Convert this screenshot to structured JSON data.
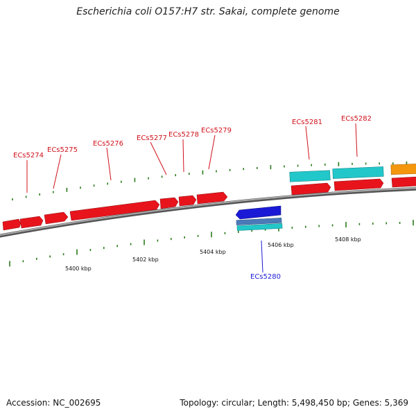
{
  "title": "Escherichia coli O157:H7 str. Sakai, complete genome",
  "footer": {
    "accession": "Accession: NC_002695",
    "info": "Topology: circular; Length: 5,498,450 bp; Genes: 5,369"
  },
  "scale_labels": [
    "5400 kbp",
    "5402 kbp",
    "5404 kbp",
    "5406 kbp",
    "5408 kbp"
  ],
  "genes": [
    {
      "label": "ECs5274",
      "strand": "+",
      "color": "#e8141c"
    },
    {
      "label": "ECs5275",
      "strand": "+",
      "color": "#e8141c"
    },
    {
      "label": "ECs5276",
      "strand": "+",
      "color": "#e8141c"
    },
    {
      "label": "ECs5277",
      "strand": "+",
      "color": "#e8141c"
    },
    {
      "label": "ECs5278",
      "strand": "+",
      "color": "#e8141c"
    },
    {
      "label": "ECs5279",
      "strand": "+",
      "color": "#e8141c"
    },
    {
      "label": "ECs5280",
      "strand": "-",
      "color": "#1a1ad6"
    },
    {
      "label": "ECs5281",
      "strand": "+",
      "color": "#e8141c"
    },
    {
      "label": "ECs5282",
      "strand": "+",
      "color": "#e8141c"
    }
  ],
  "colors": {
    "forward_gene": "#e8141c",
    "reverse_gene": "#1a1ad6",
    "forward_cds": "#22c7c9",
    "reverse_cds": "#4db8c4",
    "other_feature": "#f5960f",
    "backbone": "#8c8c8c",
    "gene_label_forward": "#d0101a",
    "gene_label_reverse": "#1a1ad6",
    "ticks": "#2a7a1a"
  }
}
